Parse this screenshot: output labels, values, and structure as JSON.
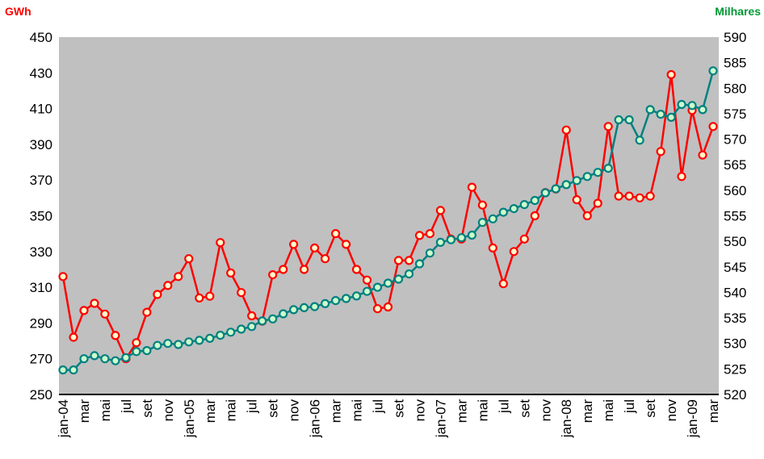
{
  "chart_data": {
    "type": "line",
    "y_left_unit": "GWh",
    "y_right_unit": "Milhares",
    "y_left_range": [
      250,
      450
    ],
    "y_left_ticks": [
      250,
      270,
      290,
      310,
      330,
      350,
      370,
      390,
      410,
      430,
      450
    ],
    "y_right_range": [
      520,
      590
    ],
    "y_right_ticks": [
      520,
      525,
      530,
      535,
      540,
      545,
      550,
      555,
      560,
      565,
      570,
      575,
      580,
      585,
      590
    ],
    "grid": false,
    "plot_background": "#c0c0c0",
    "x_labels": [
      "jan-04",
      "",
      "mar",
      "",
      "mai",
      "",
      "jul",
      "",
      "set",
      "",
      "nov",
      "",
      "jan-05",
      "",
      "mar",
      "",
      "mai",
      "",
      "jul",
      "",
      "set",
      "",
      "nov",
      "",
      "jan-06",
      "",
      "mar",
      "",
      "mai",
      "",
      "jul",
      "",
      "set",
      "",
      "nov",
      "",
      "jan-07",
      "",
      "mar",
      "",
      "mai",
      "",
      "jul",
      "",
      "set",
      "",
      "nov",
      "",
      "jan-08",
      "",
      "mar",
      "",
      "mai",
      "",
      "jul",
      "",
      "set",
      "",
      "nov",
      "",
      "jan-09",
      "",
      "mar"
    ],
    "series": [
      {
        "axis": "left",
        "color": "#ff0000",
        "marker_fill": "#ffffcc",
        "values": [
          316,
          282,
          297,
          301,
          295,
          283,
          270,
          279,
          296,
          306,
          311,
          316,
          326,
          304,
          305,
          335,
          318,
          307,
          294,
          291,
          317,
          320,
          334,
          320,
          332,
          326,
          340,
          334,
          320,
          314,
          298,
          299,
          325,
          325,
          339,
          340,
          353,
          337,
          337,
          366,
          356,
          332,
          312,
          330,
          337,
          350,
          363,
          365,
          398,
          359,
          350,
          357,
          400,
          361,
          361,
          360,
          361,
          386,
          429,
          372,
          409,
          384,
          400
        ]
      },
      {
        "axis": "right",
        "color": "#008080",
        "marker_fill": "#ccffcc",
        "values": [
          524.8,
          524.8,
          527.0,
          527.6,
          527.0,
          526.6,
          527.2,
          528.4,
          528.6,
          529.6,
          530.0,
          529.8,
          530.3,
          530.6,
          531.0,
          531.6,
          532.2,
          532.8,
          533.3,
          534.4,
          534.8,
          535.8,
          536.6,
          537.0,
          537.2,
          537.8,
          538.4,
          538.8,
          539.3,
          540.2,
          541.0,
          541.8,
          542.6,
          543.6,
          545.6,
          547.7,
          549.8,
          550.3,
          550.7,
          551.2,
          553.7,
          554.4,
          555.7,
          556.4,
          557.2,
          558.0,
          559.5,
          560.3,
          561.1,
          561.9,
          562.7,
          563.5,
          564.3,
          573.8,
          573.8,
          569.8,
          575.8,
          574.9,
          574.3,
          576.8,
          576.6,
          575.8,
          583.4
        ]
      }
    ]
  }
}
